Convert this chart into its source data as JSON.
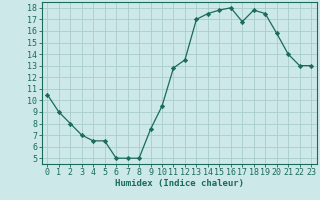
{
  "x": [
    0,
    1,
    2,
    3,
    4,
    5,
    6,
    7,
    8,
    9,
    10,
    11,
    12,
    13,
    14,
    15,
    16,
    17,
    18,
    19,
    20,
    21,
    22,
    23
  ],
  "y": [
    10.5,
    9.0,
    8.0,
    7.0,
    6.5,
    6.5,
    5.0,
    5.0,
    5.0,
    7.5,
    9.5,
    12.8,
    13.5,
    17.0,
    17.5,
    17.8,
    18.0,
    16.8,
    17.8,
    17.5,
    15.8,
    14.0,
    13.0,
    13.0
  ],
  "line_color": "#1a6b5a",
  "marker": "D",
  "marker_size": 2.2,
  "bg_color": "#cce8e8",
  "grid_color": "#aacccc",
  "xlabel": "Humidex (Indice chaleur)",
  "xlim": [
    -0.5,
    23.5
  ],
  "ylim": [
    4.5,
    18.5
  ],
  "yticks": [
    5,
    6,
    7,
    8,
    9,
    10,
    11,
    12,
    13,
    14,
    15,
    16,
    17,
    18
  ],
  "xticks": [
    0,
    1,
    2,
    3,
    4,
    5,
    6,
    7,
    8,
    9,
    10,
    11,
    12,
    13,
    14,
    15,
    16,
    17,
    18,
    19,
    20,
    21,
    22,
    23
  ],
  "tick_color": "#1a6b5a",
  "label_fontsize": 6.5,
  "tick_fontsize": 6.0,
  "spine_color": "#1a6b5a"
}
